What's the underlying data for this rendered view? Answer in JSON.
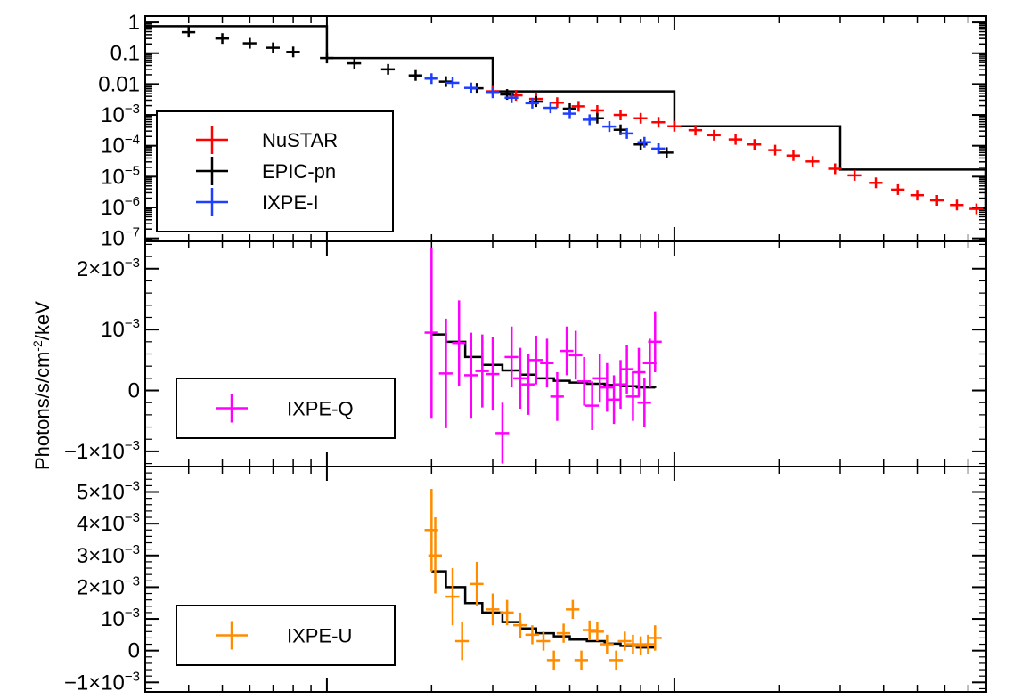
{
  "chart_data": {
    "type": "scatter",
    "ylabel": "Photons/s/cm-2/keV",
    "x_scale": "log",
    "xlim": [
      0.3,
      79
    ],
    "panels": [
      {
        "id": "spectrum",
        "yscale": "log",
        "ylim": [
          8e-08,
          1.6
        ],
        "yticks": [
          {
            "v": 1,
            "b": "1",
            "e": ""
          },
          {
            "v": 0.1,
            "b": "0.1",
            "e": ""
          },
          {
            "v": 0.01,
            "b": "0.01",
            "e": ""
          },
          {
            "v": 0.001,
            "b": "10",
            "e": "−3"
          },
          {
            "v": 0.0001,
            "b": "10",
            "e": "−4"
          },
          {
            "v": 1e-05,
            "b": "10",
            "e": "−5"
          },
          {
            "v": 1e-06,
            "b": "10",
            "e": "−6"
          },
          {
            "v": 1e-07,
            "b": "10",
            "e": "−7"
          }
        ],
        "legend": [
          "NuSTAR",
          "EPIC-pn",
          "IXPE-I"
        ],
        "series": [
          {
            "name": "NuSTAR",
            "color": "#ff0000",
            "x": [
              3,
              3.5,
              4,
              4.6,
              5.3,
              6,
              7,
              8,
              9,
              10,
              11.5,
              13,
              15,
              17,
              19.5,
              22,
              25,
              29,
              33,
              38,
              44,
              50,
              57,
              65,
              74
            ],
            "y": [
              0.0058,
              0.0043,
              0.0033,
              0.0025,
              0.0019,
              0.0014,
              0.001,
              0.00078,
              0.00058,
              0.00043,
              0.00032,
              0.00022,
              0.00016,
              0.00011,
              7.2e-05,
              4.8e-05,
              3.1e-05,
              1.8e-05,
              1.1e-05,
              6.3e-06,
              3.8e-06,
              2.5e-06,
              1.7e-06,
              1.2e-06,
              9e-07
            ]
          },
          {
            "name": "EPIC-pn",
            "color": "#000000",
            "x": [
              0.4,
              0.5,
              0.6,
              0.7,
              0.8,
              1,
              1.2,
              1.5,
              1.8,
              2.2,
              2.7,
              3.3,
              4,
              5,
              6,
              7,
              8,
              9,
              9.5
            ],
            "y": [
              0.48,
              0.3,
              0.21,
              0.15,
              0.11,
              0.07,
              0.047,
              0.03,
              0.019,
              0.012,
              0.0073,
              0.0046,
              0.0027,
              0.0016,
              0.00078,
              0.00033,
              0.00011,
              8e-05,
              6e-05
            ]
          },
          {
            "name": "IXPE-I",
            "color": "#1f3fff",
            "x": [
              2.0,
              2.3,
              2.6,
              3.0,
              3.4,
              3.9,
              4.4,
              5.0,
              5.7,
              6.5,
              7.3,
              8.2,
              9.0
            ],
            "y": [
              0.015,
              0.011,
              0.0075,
              0.0052,
              0.0036,
              0.0024,
              0.0017,
              0.0011,
              0.0007,
              0.00042,
              0.00025,
              0.00013,
              8e-05
            ]
          }
        ],
        "model": {
          "x": [
            0.3,
            1,
            3,
            10,
            30,
            79
          ],
          "y": [
            0.75,
            0.07,
            0.0058,
            0.00043,
            1.7e-05,
            9e-07
          ]
        }
      },
      {
        "id": "stokes-q",
        "yscale": "linear",
        "ylim": [
          -0.00125,
          0.00245
        ],
        "yticks": [
          {
            "v": 0.002,
            "b": "2×10",
            "e": "−3"
          },
          {
            "v": 0.001,
            "b": "10",
            "e": "−3"
          },
          {
            "v": 0,
            "b": "0",
            "e": ""
          },
          {
            "v": -0.001,
            "b": "−1×10",
            "e": "−3"
          }
        ],
        "legend": [
          "IXPE-Q"
        ],
        "series": [
          {
            "name": "IXPE-Q",
            "color": "#ff00ff",
            "x": [
              2.0,
              2.2,
              2.4,
              2.6,
              2.8,
              3.0,
              3.2,
              3.4,
              3.6,
              3.8,
              4.0,
              4.3,
              4.6,
              4.9,
              5.2,
              5.5,
              5.8,
              6.1,
              6.4,
              6.7,
              7.0,
              7.3,
              7.6,
              7.9,
              8.2,
              8.5,
              8.8
            ],
            "y": [
              0.00095,
              0.00028,
              0.00078,
              0.00025,
              0.00032,
              0.00027,
              -0.0007,
              0.00055,
              0.0002,
              0.0001,
              0.0005,
              0.00045,
              -0.0001,
              0.00065,
              0.00058,
              0.00015,
              -0.00025,
              0.0002,
              5e-05,
              -0.00015,
              0.0001,
              0.00035,
              -0.0001,
              0.0003,
              -0.0002,
              0.00045,
              0.0008
            ],
            "err": [
              0.0014,
              0.0009,
              0.0007,
              0.0007,
              0.0006,
              0.0006,
              0.0005,
              0.0005,
              0.0005,
              0.0005,
              0.0004,
              0.0004,
              0.0004,
              0.0004,
              0.0004,
              0.0004,
              0.0004,
              0.0004,
              0.0004,
              0.0004,
              0.0004,
              0.0004,
              0.0004,
              0.0004,
              0.0004,
              0.0004,
              0.0005
            ]
          }
        ],
        "model": {
          "x": [
            2.0,
            2.2,
            2.5,
            2.8,
            3.2,
            3.6,
            4.0,
            4.5,
            5.0,
            5.6,
            6.3,
            7.0,
            7.8,
            8.8
          ],
          "y": [
            0.00092,
            0.0008,
            0.00055,
            0.00042,
            0.00033,
            0.00026,
            0.0002,
            0.00016,
            0.00013,
            0.00011,
            9e-05,
            7e-05,
            5e-05,
            4e-05
          ]
        }
      },
      {
        "id": "stokes-u",
        "yscale": "linear",
        "ylim": [
          -0.0013,
          0.0058
        ],
        "yticks": [
          {
            "v": 0.005,
            "b": "5×10",
            "e": "−3"
          },
          {
            "v": 0.004,
            "b": "4×10",
            "e": "−3"
          },
          {
            "v": 0.003,
            "b": "3×10",
            "e": "−3"
          },
          {
            "v": 0.002,
            "b": "2×10",
            "e": "−3"
          },
          {
            "v": 0.001,
            "b": "10",
            "e": "−3"
          },
          {
            "v": 0,
            "b": "0",
            "e": ""
          },
          {
            "v": -0.001,
            "b": "−1×10",
            "e": "−3"
          }
        ],
        "legend": [
          "IXPE-U"
        ],
        "series": [
          {
            "name": "IXPE-U",
            "color": "#ff8c00",
            "x": [
              2.0,
              2.05,
              2.3,
              2.45,
              2.7,
              3.0,
              3.3,
              3.6,
              3.9,
              4.2,
              4.5,
              4.8,
              5.1,
              5.4,
              5.7,
              6.0,
              6.4,
              6.8,
              7.2,
              7.6,
              8.0,
              8.4,
              8.8
            ],
            "y": [
              0.0038,
              0.003,
              0.0017,
              0.0003,
              0.0021,
              0.0013,
              0.0012,
              0.0008,
              0.0005,
              0.0003,
              -0.0003,
              0.00055,
              0.0013,
              -0.0003,
              0.00065,
              0.0006,
              0.0002,
              -0.0003,
              0.0003,
              0.0002,
              0.00015,
              0.0002,
              0.0004
            ],
            "err": [
              0.0013,
              0.0012,
              0.0009,
              0.0006,
              0.0007,
              0.0005,
              0.0004,
              0.0004,
              0.0003,
              0.0003,
              0.0003,
              0.0003,
              0.0003,
              0.0003,
              0.0003,
              0.0003,
              0.0003,
              0.0003,
              0.0003,
              0.0003,
              0.0003,
              0.0003,
              0.0004
            ]
          }
        ],
        "model": {
          "x": [
            2.0,
            2.2,
            2.5,
            2.8,
            3.2,
            3.6,
            4.0,
            4.5,
            5.0,
            5.6,
            6.3,
            7.0,
            7.8,
            8.8
          ],
          "y": [
            0.0025,
            0.002,
            0.0015,
            0.0012,
            0.0009,
            0.0007,
            0.00055,
            0.00045,
            0.00035,
            0.0003,
            0.00022,
            0.00015,
            0.0001,
            8e-05
          ]
        }
      }
    ]
  }
}
